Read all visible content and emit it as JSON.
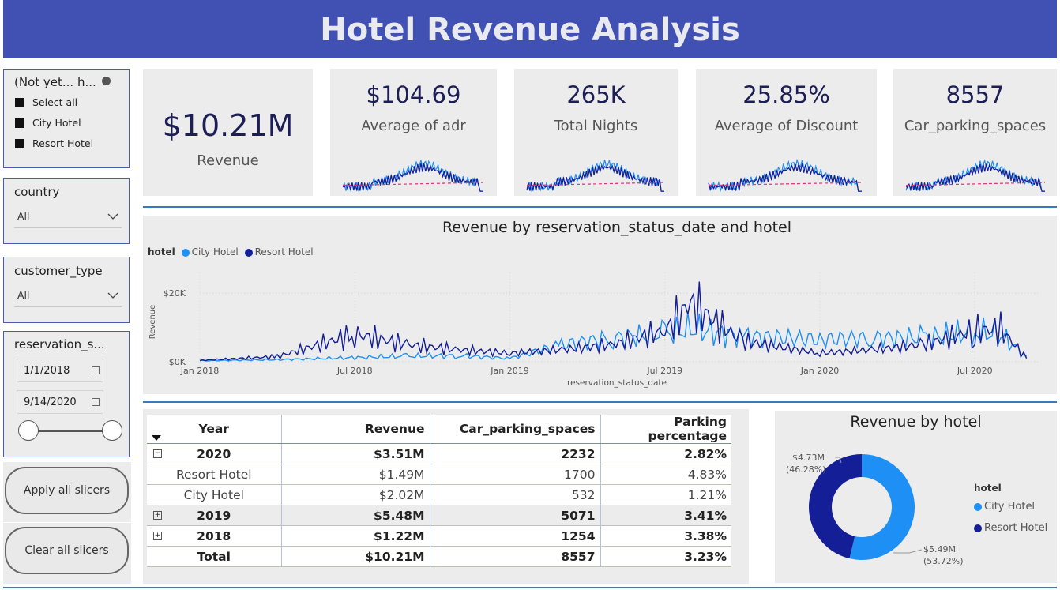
{
  "header": {
    "title": "Hotel Revenue Analysis"
  },
  "slicers": {
    "hotel": {
      "title": "(Not yet...  h...",
      "items": [
        "Select all",
        "City Hotel",
        "Resort Hotel"
      ]
    },
    "country": {
      "title": "country",
      "selected": "All"
    },
    "customer_type": {
      "title": "customer_type",
      "selected": "All"
    },
    "reservation_date": {
      "title": "reservation_s...",
      "start": "1/1/2018",
      "end": "9/14/2020"
    }
  },
  "buttons": {
    "apply": "Apply all slicers",
    "clear": "Clear all slicers"
  },
  "kpis": {
    "revenue": {
      "value": "$10.21M",
      "label": "Revenue"
    },
    "adr": {
      "value": "$104.69",
      "label": "Average of adr"
    },
    "nights": {
      "value": "265K",
      "label": "Total Nights"
    },
    "discount": {
      "value": "25.85%",
      "label": "Average of Discount"
    },
    "parking": {
      "value": "8557",
      "label": "Car_parking_spaces"
    }
  },
  "line_chart": {
    "title": "Revenue by reservation_status_date and hotel",
    "legend_title": "hotel",
    "legend": [
      "City Hotel",
      "Resort Hotel"
    ],
    "ylabel": "Revenue",
    "xlabel": "reservation_status_date",
    "y_ticks": [
      "$20K",
      "$0K"
    ],
    "x_ticks": [
      "Jan 2018",
      "Jul 2018",
      "Jan 2019",
      "Jul 2019",
      "Jan 2020",
      "Jul 2020"
    ]
  },
  "table": {
    "headers": [
      "Year",
      "Revenue",
      "Car_parking_spaces",
      "Parking percentage"
    ],
    "rows": [
      {
        "year": "2020",
        "revenue": "$3.51M",
        "parking": "2232",
        "pct": "2.82%"
      },
      {
        "year": "Resort Hotel",
        "revenue": "$1.49M",
        "parking": "1700",
        "pct": "4.83%"
      },
      {
        "year": "City Hotel",
        "revenue": "$2.02M",
        "parking": "532",
        "pct": "1.21%"
      },
      {
        "year": "2019",
        "revenue": "$5.48M",
        "parking": "5071",
        "pct": "3.41%"
      },
      {
        "year": "2018",
        "revenue": "$1.22M",
        "parking": "1254",
        "pct": "3.38%"
      },
      {
        "year": "Total",
        "revenue": "$10.21M",
        "parking": "8557",
        "pct": "3.23%"
      }
    ]
  },
  "donut": {
    "title": "Revenue by hotel",
    "legend_title": "hotel",
    "legend": [
      "City Hotel",
      "Resort Hotel"
    ],
    "label_resort": "$4.73M",
    "label_resort_pct": "(46.28%)",
    "label_city": "$5.49M",
    "label_city_pct": "(53.72%)"
  },
  "colors": {
    "header": "#4150b3",
    "city": "#1e90f5",
    "resort": "#141e96",
    "kpi_value": "#1d1e55"
  },
  "chart_data": [
    {
      "type": "line",
      "title": "Revenue by reservation_status_date and hotel",
      "xlabel": "reservation_status_date",
      "ylabel": "Revenue",
      "x": [
        "2018-01",
        "2018-04",
        "2018-07",
        "2018-09",
        "2018-11",
        "2019-01",
        "2019-03",
        "2019-05",
        "2019-07",
        "2019-08",
        "2019-10",
        "2020-01",
        "2020-03",
        "2020-05",
        "2020-07",
        "2020-08",
        "2020-09"
      ],
      "series": [
        {
          "name": "City Hotel",
          "values": [
            300,
            600,
            1200,
            1600,
            1800,
            1000,
            5000,
            7000,
            8000,
            9500,
            7500,
            6500,
            7000,
            7000,
            8500,
            8000,
            1500
          ]
        },
        {
          "name": "Resort Hotel",
          "values": [
            400,
            1500,
            8000,
            5000,
            3500,
            2500,
            3500,
            5000,
            9000,
            17000,
            6000,
            2500,
            3500,
            5000,
            9000,
            9500,
            1000
          ]
        }
      ],
      "ylim": [
        0,
        26000
      ]
    },
    {
      "type": "pie",
      "title": "Revenue by hotel",
      "categories": [
        "City Hotel",
        "Resort Hotel"
      ],
      "values": [
        5.49,
        4.73
      ]
    }
  ]
}
